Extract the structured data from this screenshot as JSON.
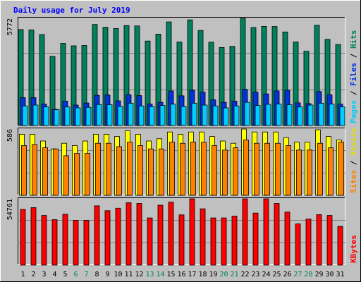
{
  "chart_data": {
    "type": "bar",
    "title": "Daily usage for July 2019",
    "categories": [
      "1",
      "2",
      "3",
      "4",
      "5",
      "6",
      "7",
      "8",
      "9",
      "10",
      "11",
      "12",
      "13",
      "14",
      "15",
      "16",
      "17",
      "18",
      "19",
      "20",
      "21",
      "22",
      "23",
      "24",
      "25",
      "26",
      "27",
      "28",
      "29",
      "30",
      "31"
    ],
    "weekend_days": [
      "6",
      "7",
      "13",
      "14",
      "20",
      "21",
      "27",
      "28"
    ],
    "panels": [
      {
        "id": "hits",
        "ymax": 5772,
        "ymax_label": "5772",
        "right_label": [
          "Pages",
          " / ",
          "Files",
          " / ",
          "Hits"
        ],
        "right_label_colors": [
          "#00ccff",
          "#000000",
          "#0033dd",
          "#000000",
          "#00805c"
        ],
        "series": [
          {
            "name": "Hits",
            "color": "#00805c",
            "values": [
              5170,
              5150,
              4900,
              3720,
              4420,
              4290,
              4310,
              5440,
              5290,
              5220,
              5380,
              5360,
              4550,
              4920,
              5580,
              4500,
              5690,
              5120,
              4490,
              4200,
              4260,
              5960,
              5280,
              5340,
              5330,
              5040,
              4500,
              4000,
              5400,
              4640,
              4360
            ]
          },
          {
            "name": "Files",
            "color": "#0033dd",
            "values": [
              1500,
              1500,
              1150,
              870,
              1310,
              1100,
              1210,
              1630,
              1640,
              1330,
              1650,
              1610,
              1160,
              1250,
              1860,
              1600,
              1900,
              1800,
              1380,
              1250,
              1310,
              1950,
              1800,
              1700,
              1860,
              1900,
              1220,
              1180,
              1830,
              1650,
              1150
            ]
          },
          {
            "name": "Pages",
            "color": "#00ccff",
            "values": [
              1050,
              1100,
              1000,
              850,
              1000,
              950,
              980,
              1130,
              1120,
              1020,
              1200,
              1050,
              1010,
              1080,
              1150,
              1020,
              1200,
              1100,
              1050,
              950,
              1050,
              1250,
              1080,
              1140,
              1150,
              1120,
              1000,
              1100,
              1200,
              1150,
              1000
            ]
          }
        ]
      },
      {
        "id": "visits",
        "ymax": 586,
        "ymax_label": "586",
        "right_label": [
          "Sites",
          " / ",
          "Visits"
        ],
        "right_label_colors": [
          "#ff8000",
          "#000000",
          "#e0e000"
        ],
        "series": [
          {
            "name": "Visits",
            "color": "#ffff00",
            "values": [
              540,
              540,
              480,
              410,
              460,
              440,
              480,
              540,
              540,
              520,
              570,
              540,
              480,
              500,
              560,
              540,
              560,
              560,
              520,
              480,
              460,
              600,
              560,
              560,
              560,
              510,
              470,
              470,
              580,
              520,
              490
            ]
          },
          {
            "name": "Sites",
            "color": "#ff8000",
            "values": [
              440,
              450,
              420,
              410,
              350,
              370,
              370,
              460,
              460,
              430,
              470,
              440,
              410,
              410,
              470,
              460,
              470,
              470,
              440,
              400,
              420,
              490,
              460,
              460,
              460,
              440,
              400,
              400,
              460,
              420,
              470
            ]
          }
        ]
      },
      {
        "id": "kbytes",
        "ymax": 54761,
        "ymax_label": "54761",
        "right_label": [
          "KBytes"
        ],
        "right_label_colors": [
          "#ff0000"
        ],
        "series": [
          {
            "name": "KBytes",
            "color": "#ff0000",
            "values": [
              46000,
              47500,
              41000,
              37500,
              42000,
              37000,
              37000,
              49000,
              45000,
              47000,
              51500,
              51000,
              39000,
              49500,
              52000,
              41500,
              55000,
              46500,
              39000,
              39000,
              40500,
              60500,
              43000,
              56000,
              51000,
              43800,
              34000,
              38000,
              41700,
              41000,
              32000
            ]
          }
        ]
      }
    ]
  }
}
